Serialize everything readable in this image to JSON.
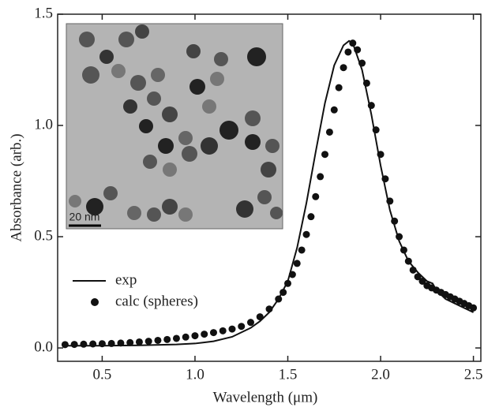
{
  "chart_data": {
    "type": "line",
    "x_label": "Wavelength (μm)",
    "y_label": "Absorbance (arb.)",
    "xlim": [
      0.26,
      2.54
    ],
    "ylim": [
      -0.06,
      1.5
    ],
    "xticks": [
      0.5,
      {
        "value": 1,
        "label": "1.0"
      },
      1.5,
      {
        "value": 2,
        "label": "2.0"
      },
      2.5
    ],
    "yticks": [
      {
        "value": 0,
        "label": "0.0"
      },
      0.5,
      {
        "value": 1,
        "label": "1.0"
      },
      1.5
    ],
    "legend": "lower left",
    "inset_label": "20 nm",
    "series": [
      {
        "name": "exp",
        "style": "line",
        "color": "#111111",
        "x": [
          0.3,
          0.5,
          0.7,
          0.9,
          1.0,
          1.1,
          1.2,
          1.3,
          1.35,
          1.4,
          1.45,
          1.5,
          1.55,
          1.6,
          1.65,
          1.7,
          1.75,
          1.8,
          1.83,
          1.85,
          1.9,
          1.95,
          2.0,
          2.05,
          2.1,
          2.15,
          2.2,
          2.25,
          2.28,
          2.3,
          2.35,
          2.4,
          2.45,
          2.5
        ],
        "values": [
          0.01,
          0.01,
          0.012,
          0.016,
          0.02,
          0.03,
          0.05,
          0.09,
          0.12,
          0.16,
          0.22,
          0.3,
          0.45,
          0.65,
          0.88,
          1.1,
          1.27,
          1.36,
          1.38,
          1.37,
          1.25,
          1.05,
          0.82,
          0.62,
          0.48,
          0.39,
          0.34,
          0.3,
          0.29,
          0.26,
          0.22,
          0.2,
          0.18,
          0.16
        ]
      },
      {
        "name": "calc (spheres)",
        "style": "dots",
        "color": "#111111",
        "x": [
          0.3,
          0.35,
          0.4,
          0.45,
          0.5,
          0.55,
          0.6,
          0.65,
          0.7,
          0.75,
          0.8,
          0.85,
          0.9,
          0.95,
          1.0,
          1.05,
          1.1,
          1.15,
          1.2,
          1.25,
          1.3,
          1.35,
          1.4,
          1.45,
          1.475,
          1.5,
          1.525,
          1.55,
          1.575,
          1.6,
          1.625,
          1.65,
          1.675,
          1.7,
          1.725,
          1.75,
          1.775,
          1.8,
          1.825,
          1.85,
          1.875,
          1.9,
          1.925,
          1.95,
          1.975,
          2.0,
          2.025,
          2.05,
          2.075,
          2.1,
          2.125,
          2.15,
          2.175,
          2.2,
          2.225,
          2.25,
          2.275,
          2.3,
          2.325,
          2.35,
          2.375,
          2.4,
          2.425,
          2.45,
          2.475,
          2.5
        ],
        "values": [
          0.015,
          0.016,
          0.017,
          0.018,
          0.019,
          0.02,
          0.022,
          0.024,
          0.027,
          0.03,
          0.034,
          0.038,
          0.043,
          0.049,
          0.055,
          0.062,
          0.069,
          0.077,
          0.085,
          0.097,
          0.115,
          0.14,
          0.175,
          0.22,
          0.25,
          0.29,
          0.33,
          0.38,
          0.44,
          0.51,
          0.59,
          0.68,
          0.77,
          0.87,
          0.97,
          1.07,
          1.17,
          1.26,
          1.33,
          1.37,
          1.34,
          1.28,
          1.19,
          1.09,
          0.98,
          0.87,
          0.76,
          0.66,
          0.57,
          0.5,
          0.44,
          0.39,
          0.35,
          0.32,
          0.3,
          0.28,
          0.27,
          0.26,
          0.25,
          0.24,
          0.23,
          0.22,
          0.21,
          0.2,
          0.19,
          0.18
        ]
      }
    ]
  }
}
